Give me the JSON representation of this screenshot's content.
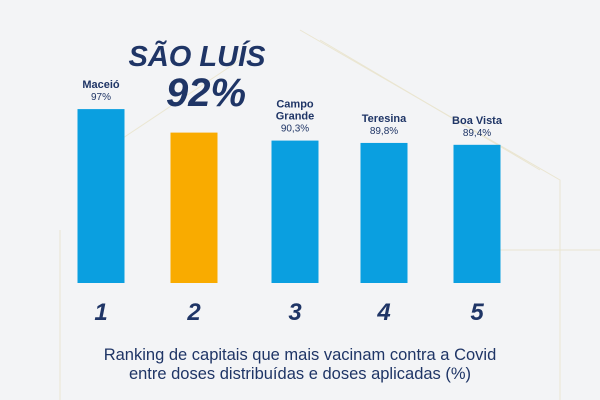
{
  "chart_data": {
    "type": "bar",
    "categories": [
      "1",
      "2",
      "3",
      "4",
      "5"
    ],
    "series": [
      {
        "city_labels": [
          [
            "Maceió"
          ],
          [
            "SÃO LUÍS"
          ],
          [
            "Campo",
            "Grande"
          ],
          [
            "Teresina"
          ],
          [
            "Boa Vista"
          ]
        ],
        "value_labels": [
          "97%",
          "92%",
          "90,3%",
          "89,8%",
          "89,4%"
        ],
        "values": [
          97,
          92,
          90.3,
          89.8,
          89.4
        ],
        "colors": [
          "#0a9fe0",
          "#f9ab00",
          "#0a9fe0",
          "#0a9fe0",
          "#0a9fe0"
        ]
      }
    ],
    "highlight_index": 1,
    "caption": [
      "Ranking de capitais que mais vacinam contra a Covid",
      "entre doses distribuídas e doses aplicadas (%)"
    ],
    "colors": {
      "text_dark": "#1f3566",
      "baseline_start": "#e9e03a",
      "baseline_end": "#25b2e6"
    }
  }
}
